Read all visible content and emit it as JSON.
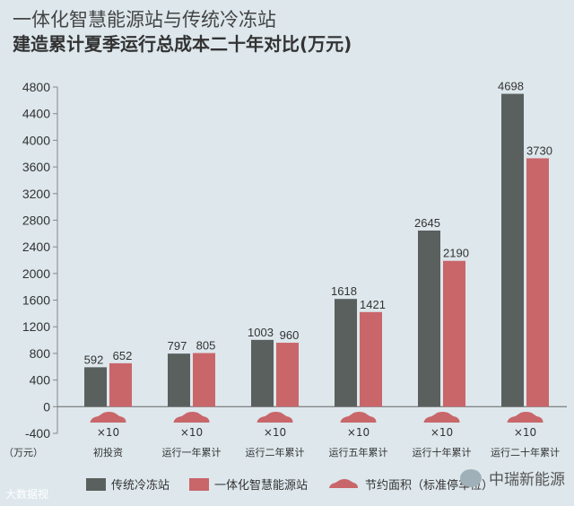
{
  "titles": {
    "line1": "一体化智慧能源站与传统冷冻站",
    "line2": "建造累计夏季运行总成本二十年对比(万元)"
  },
  "chart_data": {
    "type": "bar",
    "unit_label": "（万元）",
    "ylim": [
      -400,
      4800
    ],
    "yticks": [
      -400,
      0,
      400,
      800,
      1200,
      1600,
      2000,
      2400,
      2800,
      3200,
      3600,
      4000,
      4400,
      4800
    ],
    "categories": [
      "初投资",
      "运行一年累计",
      "运行二年累计",
      "运行五年累计",
      "运行十年累计",
      "运行二十年累计"
    ],
    "series": [
      {
        "name": "传统冷冻站",
        "color": "#5a605e",
        "values": [
          592,
          797,
          1003,
          1618,
          2645,
          4698
        ]
      },
      {
        "name": "一体化智慧能源站",
        "color": "#c9666a",
        "values": [
          652,
          805,
          960,
          1421,
          2190,
          3730
        ]
      }
    ],
    "area_marker_label": "×10",
    "area_legend": "节约面积（标准停车位）",
    "grid": false,
    "legend_position": "bottom"
  },
  "brand": "中瑞新能源",
  "watermark": "大数据视"
}
